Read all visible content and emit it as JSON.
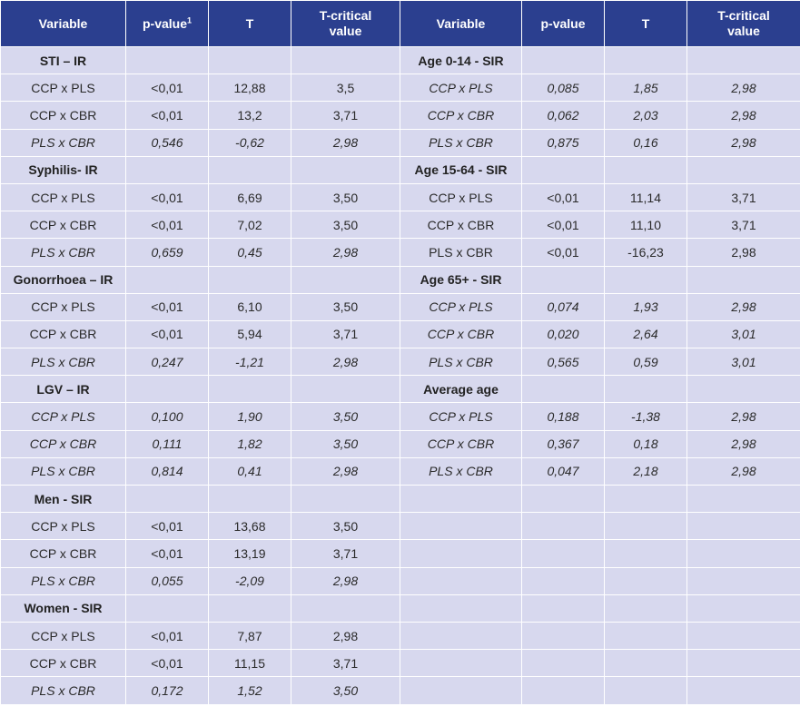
{
  "headers": {
    "variable": "Variable",
    "p_value": "p-value",
    "p_value_sup": "1",
    "t": "T",
    "t_critical_line1": "T-critical",
    "t_critical_line2": "value",
    "variable_right": "Variable",
    "p_value_right": "p-value",
    "t_right": "T",
    "t_critical_right_line1": "T-critical",
    "t_critical_right_line2": "value"
  },
  "left": [
    {
      "type": "group",
      "label": "STI – IR"
    },
    {
      "type": "row",
      "italic": false,
      "variable": "CCP x PLS",
      "p": "<0,01",
      "t": "12,88",
      "tc": "3,5"
    },
    {
      "type": "row",
      "italic": false,
      "variable": "CCP x CBR",
      "p": "<0,01",
      "t": "13,2",
      "tc": "3,71"
    },
    {
      "type": "row",
      "italic": true,
      "variable": "PLS x CBR",
      "p": "0,546",
      "t": "-0,62",
      "tc": "2,98"
    },
    {
      "type": "group",
      "label": "Syphilis- IR"
    },
    {
      "type": "row",
      "italic": false,
      "variable": "CCP x PLS",
      "p": "<0,01",
      "t": "6,69",
      "tc": "3,50"
    },
    {
      "type": "row",
      "italic": false,
      "variable": "CCP x CBR",
      "p": "<0,01",
      "t": "7,02",
      "tc": "3,50"
    },
    {
      "type": "row",
      "italic": true,
      "variable": "PLS x CBR",
      "p": "0,659",
      "t": "0,45",
      "tc": "2,98"
    },
    {
      "type": "group",
      "label": "Gonorrhoea – IR"
    },
    {
      "type": "row",
      "italic": false,
      "variable": "CCP x PLS",
      "p": "<0,01",
      "t": "6,10",
      "tc": "3,50"
    },
    {
      "type": "row",
      "italic": false,
      "variable": "CCP x CBR",
      "p": "<0,01",
      "t": "5,94",
      "tc": "3,71"
    },
    {
      "type": "row",
      "italic": true,
      "variable": "PLS x CBR",
      "p": "0,247",
      "t": "-1,21",
      "tc": "2,98"
    },
    {
      "type": "group",
      "label": "LGV – IR"
    },
    {
      "type": "row",
      "italic": true,
      "variable": "CCP x PLS",
      "p": "0,100",
      "t": "1,90",
      "tc": "3,50"
    },
    {
      "type": "row",
      "italic": true,
      "variable": "CCP x CBR",
      "p": "0,111",
      "t": "1,82",
      "tc": "3,50"
    },
    {
      "type": "row",
      "italic": true,
      "variable": "PLS x CBR",
      "p": "0,814",
      "t": "0,41",
      "tc": "2,98"
    },
    {
      "type": "group",
      "label": "Men - SIR"
    },
    {
      "type": "row",
      "italic": false,
      "variable": "CCP x PLS",
      "p": "<0,01",
      "t": "13,68",
      "tc": "3,50"
    },
    {
      "type": "row",
      "italic": false,
      "variable": "CCP x CBR",
      "p": "<0,01",
      "t": "13,19",
      "tc": "3,71"
    },
    {
      "type": "row",
      "italic": true,
      "variable": "PLS x CBR",
      "p": "0,055",
      "t": "-2,09",
      "tc": "2,98"
    },
    {
      "type": "group",
      "label": "Women - SIR"
    },
    {
      "type": "row",
      "italic": false,
      "variable": "CCP x PLS",
      "p": "<0,01",
      "t": "7,87",
      "tc": "2,98"
    },
    {
      "type": "row",
      "italic": false,
      "variable": "CCP x CBR",
      "p": "<0,01",
      "t": "11,15",
      "tc": "3,71"
    },
    {
      "type": "row",
      "italic": true,
      "variable": "PLS x CBR",
      "p": "0,172",
      "t": "1,52",
      "tc": "3,50"
    }
  ],
  "right": [
    {
      "type": "group",
      "label": "Age 0-14 - SIR"
    },
    {
      "type": "row",
      "italic": true,
      "variable": "CCP x PLS",
      "p": "0,085",
      "t": "1,85",
      "tc": "2,98"
    },
    {
      "type": "row",
      "italic": true,
      "variable": "CCP x CBR",
      "p": "0,062",
      "t": "2,03",
      "tc": "2,98"
    },
    {
      "type": "row",
      "italic": true,
      "variable": "PLS x CBR",
      "p": "0,875",
      "t": "0,16",
      "tc": "2,98"
    },
    {
      "type": "group",
      "label": "Age 15-64 - SIR"
    },
    {
      "type": "row",
      "italic": false,
      "variable": "CCP x PLS",
      "p": "<0,01",
      "t": "11,14",
      "tc": "3,71"
    },
    {
      "type": "row",
      "italic": false,
      "variable": "CCP x CBR",
      "p": "<0,01",
      "t": "11,10",
      "tc": "3,71"
    },
    {
      "type": "row",
      "italic": false,
      "variable": "PLS x CBR",
      "p": "<0,01",
      "t": "-16,23",
      "tc": "2,98"
    },
    {
      "type": "group",
      "label": "Age 65+ - SIR"
    },
    {
      "type": "row",
      "italic": true,
      "variable": "CCP x PLS",
      "p": "0,074",
      "t": "1,93",
      "tc": "2,98"
    },
    {
      "type": "row",
      "italic": true,
      "variable": "CCP x CBR",
      "p": "0,020",
      "t": "2,64",
      "tc": "3,01"
    },
    {
      "type": "row",
      "italic": true,
      "variable": "PLS x CBR",
      "p": "0,565",
      "t": "0,59",
      "tc": "3,01"
    },
    {
      "type": "group",
      "label": "Average age"
    },
    {
      "type": "row",
      "italic": true,
      "variable": "CCP x PLS",
      "p": "0,188",
      "t": "-1,38",
      "tc": "2,98"
    },
    {
      "type": "row",
      "italic": true,
      "variable": "CCP x CBR",
      "p": "0,367",
      "t": "0,18",
      "tc": "2,98"
    },
    {
      "type": "row",
      "italic": true,
      "variable": "PLS x CBR",
      "p": "0,047",
      "t": "2,18",
      "tc": "2,98"
    }
  ]
}
